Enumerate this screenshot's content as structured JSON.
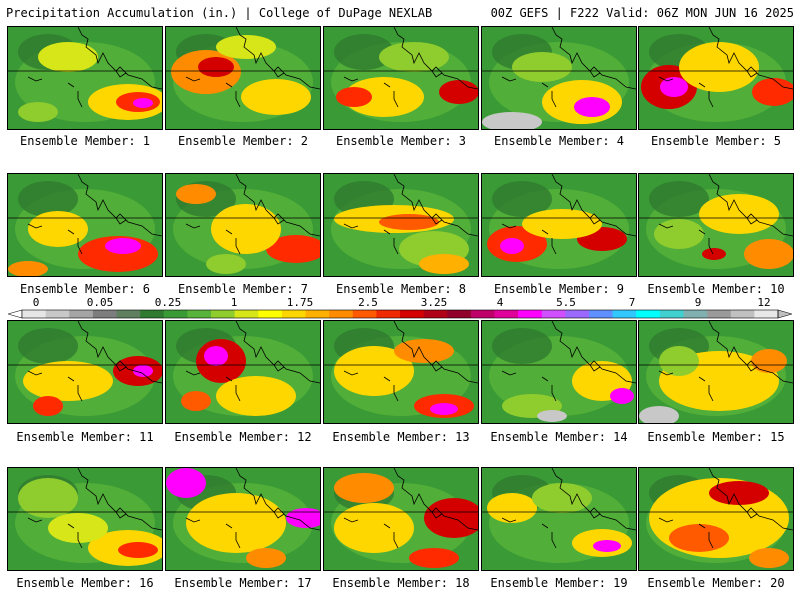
{
  "header": {
    "left": "Precipitation Accumulation (in.) | College of DuPage NEXLAB",
    "right": "00Z GEFS | F222 Valid: 06Z MON JUN 16 2025"
  },
  "colorbar": {
    "labels": [
      "0",
      "0.05",
      "0.25",
      "1",
      "1.75",
      "2.5",
      "3.25",
      "4",
      "5.5",
      "7",
      "9",
      "12"
    ],
    "colors": [
      "#e6e6e6",
      "#c8c8c8",
      "#a5a5a5",
      "#7d7d7d",
      "#5f7f5f",
      "#2f7a2f",
      "#3a9a35",
      "#58b33a",
      "#8fcc2e",
      "#d6e619",
      "#ffff00",
      "#ffd700",
      "#ffb000",
      "#ff8c00",
      "#ff5a00",
      "#f02a00",
      "#d40000",
      "#b00018",
      "#90002a",
      "#c0006a",
      "#e0009a",
      "#ff00ff",
      "#d050ff",
      "#9a6aff",
      "#6090ff",
      "#30c8ff",
      "#00ffff",
      "#40d0d0",
      "#80b0b0",
      "#9a9a9a",
      "#c0c0c0",
      "#e8e8e8"
    ]
  },
  "members": [
    {
      "label": "Ensemble Member: 1"
    },
    {
      "label": "Ensemble Member: 2"
    },
    {
      "label": "Ensemble Member: 3"
    },
    {
      "label": "Ensemble Member: 4"
    },
    {
      "label": "Ensemble Member: 5"
    },
    {
      "label": "Ensemble Member: 6"
    },
    {
      "label": "Ensemble Member: 7"
    },
    {
      "label": "Ensemble Member: 8"
    },
    {
      "label": "Ensemble Member: 9"
    },
    {
      "label": "Ensemble Member: 10"
    },
    {
      "label": "Ensemble Member: 11"
    },
    {
      "label": "Ensemble Member: 12"
    },
    {
      "label": "Ensemble Member: 13"
    },
    {
      "label": "Ensemble Member: 14"
    },
    {
      "label": "Ensemble Member: 15"
    },
    {
      "label": "Ensemble Member: 16"
    },
    {
      "label": "Ensemble Member: 17"
    },
    {
      "label": "Ensemble Member: 18"
    },
    {
      "label": "Ensemble Member: 19"
    },
    {
      "label": "Ensemble Member: 20"
    }
  ]
}
